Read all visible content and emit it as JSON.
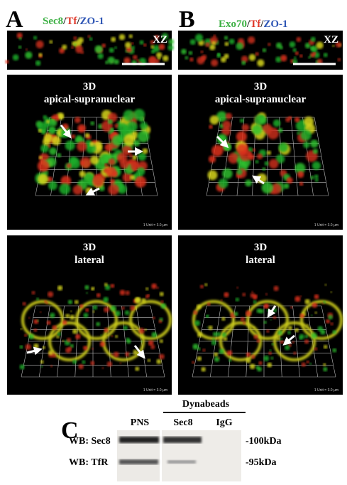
{
  "panel_a": {
    "letter": "A",
    "title": [
      "Sec8",
      "/",
      "Tf",
      "/",
      "ZO-1"
    ],
    "xz_label": "XZ",
    "top_view": {
      "heading": [
        "3D",
        "apical-supranuclear"
      ],
      "scale": "1 Unit = 3.0 µm"
    },
    "bottom_view": {
      "heading": [
        "3D",
        "lateral"
      ],
      "scale": "1 Unit = 3.0 µm"
    }
  },
  "panel_b": {
    "letter": "B",
    "title": [
      "Exo70",
      "/",
      "Tf",
      "/",
      "ZO-1"
    ],
    "xz_label": "XZ",
    "top_view": {
      "heading": [
        "3D",
        "apical-supranuclear"
      ],
      "scale": "1 Unit = 3.0 µm"
    },
    "bottom_view": {
      "heading": [
        "3D",
        "lateral"
      ],
      "scale": "1 Unit = 3.0 µm"
    }
  },
  "panel_c": {
    "letter": "C",
    "group_label": "Dynabeads",
    "lanes": [
      "PNS",
      "Sec8",
      "IgG"
    ],
    "rows": [
      "WB: Sec8",
      "WB: TfR"
    ],
    "markers": [
      "-100kDa",
      "-95kDa"
    ]
  }
}
